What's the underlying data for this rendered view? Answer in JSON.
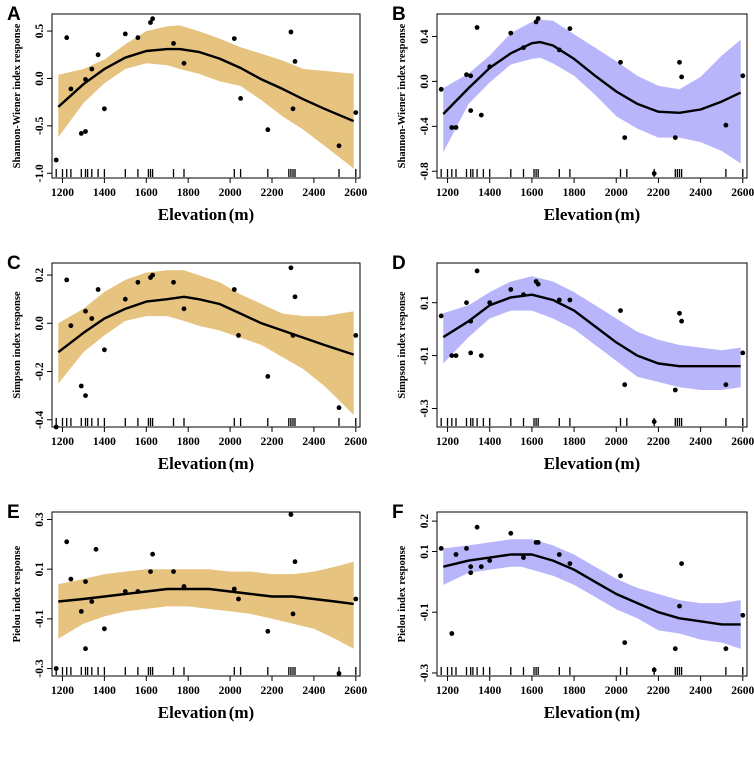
{
  "colors": {
    "gold": "#e6c37f",
    "purple": "#b9b5fb",
    "line": "#000000",
    "point": "#000000"
  },
  "chart_data": [
    {
      "panel": "A",
      "type": "scatter",
      "band_color": "gold",
      "xlabel": "Elevation (m)",
      "ylabel": "Shannon-Wiener index response",
      "xlim": [
        1150,
        2620
      ],
      "ylim": [
        -1.05,
        0.68
      ],
      "xticks": [
        1200,
        1400,
        1600,
        1800,
        2000,
        2200,
        2400,
        2600
      ],
      "yticks": [
        -1.0,
        -0.5,
        0.0,
        0.5
      ],
      "ytick_labels": [
        "-1.0",
        "-0.5",
        "0.0",
        "0.5"
      ],
      "curve": {
        "x": [
          1180,
          1300,
          1400,
          1500,
          1600,
          1700,
          1760,
          1850,
          1950,
          2050,
          2150,
          2250,
          2350,
          2450,
          2590
        ],
        "y": [
          -0.3,
          -0.06,
          0.1,
          0.22,
          0.29,
          0.31,
          0.31,
          0.28,
          0.21,
          0.11,
          -0.01,
          -0.11,
          -0.22,
          -0.32,
          -0.45
        ]
      },
      "band_upper": [
        0.04,
        0.1,
        0.2,
        0.36,
        0.5,
        0.55,
        0.56,
        0.5,
        0.42,
        0.33,
        0.26,
        0.19,
        0.1,
        0.08,
        0.05
      ],
      "band_lower": [
        -0.62,
        -0.26,
        -0.05,
        0.1,
        0.16,
        0.14,
        0.1,
        0.05,
        -0.03,
        -0.08,
        -0.23,
        -0.4,
        -0.54,
        -0.71,
        -0.95
      ],
      "points": [
        [
          1170,
          -0.86
        ],
        [
          1220,
          0.43
        ],
        [
          1240,
          -0.11
        ],
        [
          1290,
          -0.58
        ],
        [
          1310,
          -0.56
        ],
        [
          1310,
          -0.01
        ],
        [
          1340,
          0.1
        ],
        [
          1370,
          0.25
        ],
        [
          1400,
          -0.32
        ],
        [
          1500,
          0.47
        ],
        [
          1560,
          0.43
        ],
        [
          1620,
          0.59
        ],
        [
          1630,
          0.63
        ],
        [
          1730,
          0.37
        ],
        [
          1780,
          0.16
        ],
        [
          2020,
          0.42
        ],
        [
          2050,
          -0.21
        ],
        [
          2180,
          -0.54
        ],
        [
          2290,
          0.49
        ],
        [
          2300,
          -0.32
        ],
        [
          2310,
          0.18
        ],
        [
          2520,
          -0.71
        ],
        [
          2600,
          -0.36
        ]
      ],
      "rug": [
        1170,
        1200,
        1220,
        1240,
        1290,
        1310,
        1320,
        1340,
        1370,
        1400,
        1500,
        1560,
        1610,
        1620,
        1630,
        1730,
        1780,
        2020,
        2050,
        2180,
        2280,
        2290,
        2300,
        2310,
        2520,
        2600
      ]
    },
    {
      "panel": "B",
      "type": "scatter",
      "band_color": "purple",
      "xlabel": "Elevation (m)",
      "ylabel": "Shannon-Wiener index response",
      "xlim": [
        1150,
        2620
      ],
      "ylim": [
        -0.86,
        0.6
      ],
      "xticks": [
        1200,
        1400,
        1600,
        1800,
        2000,
        2200,
        2400,
        2600
      ],
      "yticks": [
        -0.8,
        -0.4,
        0.0,
        0.4
      ],
      "ytick_labels": [
        "-0.8",
        "-0.4",
        "0.0",
        "0.4"
      ],
      "curve": {
        "x": [
          1180,
          1300,
          1400,
          1500,
          1600,
          1640,
          1700,
          1800,
          1900,
          2000,
          2100,
          2200,
          2300,
          2400,
          2500,
          2590
        ],
        "y": [
          -0.29,
          -0.06,
          0.12,
          0.25,
          0.34,
          0.35,
          0.32,
          0.2,
          0.05,
          -0.09,
          -0.2,
          -0.27,
          -0.28,
          -0.25,
          -0.18,
          -0.1
        ]
      },
      "band_upper": [
        -0.06,
        0.07,
        0.23,
        0.43,
        0.53,
        0.55,
        0.54,
        0.42,
        0.3,
        0.18,
        0.05,
        -0.04,
        -0.07,
        0.04,
        0.23,
        0.37
      ],
      "band_lower": [
        -0.63,
        -0.2,
        -0.01,
        0.15,
        0.2,
        0.21,
        0.16,
        0.05,
        -0.12,
        -0.31,
        -0.42,
        -0.5,
        -0.5,
        -0.54,
        -0.62,
        -0.73
      ],
      "points": [
        [
          1170,
          -0.07
        ],
        [
          1220,
          -0.41
        ],
        [
          1240,
          -0.41
        ],
        [
          1290,
          0.06
        ],
        [
          1310,
          -0.26
        ],
        [
          1310,
          0.05
        ],
        [
          1340,
          0.48
        ],
        [
          1360,
          -0.3
        ],
        [
          1400,
          0.13
        ],
        [
          1500,
          0.43
        ],
        [
          1560,
          0.3
        ],
        [
          1620,
          0.53
        ],
        [
          1630,
          0.56
        ],
        [
          1730,
          0.28
        ],
        [
          1780,
          0.47
        ],
        [
          2020,
          0.17
        ],
        [
          2040,
          -0.5
        ],
        [
          2180,
          -0.82
        ],
        [
          2280,
          -0.5
        ],
        [
          2300,
          0.17
        ],
        [
          2310,
          0.04
        ],
        [
          2520,
          -0.39
        ],
        [
          2600,
          0.05
        ]
      ],
      "rug": [
        1170,
        1200,
        1220,
        1240,
        1290,
        1310,
        1320,
        1340,
        1370,
        1400,
        1500,
        1560,
        1610,
        1620,
        1630,
        1730,
        1780,
        2020,
        2050,
        2180,
        2280,
        2290,
        2300,
        2310,
        2520,
        2600
      ]
    },
    {
      "panel": "C",
      "type": "scatter",
      "band_color": "gold",
      "xlabel": "Elevation (m)",
      "ylabel": "Simpson index response",
      "xlim": [
        1150,
        2620
      ],
      "ylim": [
        -0.43,
        0.25
      ],
      "xticks": [
        1200,
        1400,
        1600,
        1800,
        2000,
        2200,
        2400,
        2600
      ],
      "yticks": [
        -0.4,
        -0.2,
        0.0,
        0.2
      ],
      "ytick_labels": [
        "-0.4",
        "-0.2",
        "0.0",
        "0.2"
      ],
      "curve": {
        "x": [
          1180,
          1300,
          1400,
          1500,
          1600,
          1700,
          1780,
          1850,
          1950,
          2050,
          2150,
          2250,
          2350,
          2450,
          2590
        ],
        "y": [
          -0.12,
          -0.04,
          0.02,
          0.06,
          0.09,
          0.1,
          0.11,
          0.1,
          0.08,
          0.04,
          0.0,
          -0.03,
          -0.06,
          -0.09,
          -0.13
        ]
      },
      "band_upper": [
        0.0,
        0.06,
        0.13,
        0.18,
        0.21,
        0.22,
        0.22,
        0.2,
        0.17,
        0.12,
        0.08,
        0.04,
        0.03,
        0.03,
        0.05
      ],
      "band_lower": [
        -0.25,
        -0.12,
        -0.05,
        0.01,
        0.03,
        0.03,
        0.01,
        -0.01,
        -0.03,
        -0.06,
        -0.09,
        -0.14,
        -0.19,
        -0.26,
        -0.38
      ],
      "points": [
        [
          1170,
          -0.43
        ],
        [
          1220,
          0.18
        ],
        [
          1240,
          -0.01
        ],
        [
          1290,
          -0.26
        ],
        [
          1310,
          -0.3
        ],
        [
          1310,
          0.05
        ],
        [
          1340,
          0.02
        ],
        [
          1370,
          0.14
        ],
        [
          1400,
          -0.11
        ],
        [
          1500,
          0.1
        ],
        [
          1560,
          0.17
        ],
        [
          1620,
          0.19
        ],
        [
          1630,
          0.2
        ],
        [
          1730,
          0.17
        ],
        [
          1780,
          0.06
        ],
        [
          2020,
          0.14
        ],
        [
          2040,
          -0.05
        ],
        [
          2180,
          -0.22
        ],
        [
          2290,
          0.23
        ],
        [
          2300,
          -0.05
        ],
        [
          2310,
          0.11
        ],
        [
          2520,
          -0.35
        ],
        [
          2600,
          -0.05
        ]
      ],
      "rug": [
        1170,
        1200,
        1220,
        1240,
        1290,
        1310,
        1320,
        1340,
        1370,
        1400,
        1500,
        1560,
        1610,
        1620,
        1630,
        1730,
        1780,
        2020,
        2050,
        2180,
        2280,
        2290,
        2300,
        2310,
        2520,
        2600
      ]
    },
    {
      "panel": "D",
      "type": "scatter",
      "band_color": "purple",
      "xlabel": "Elevation (m)",
      "ylabel": "Simpson index response",
      "xlim": [
        1150,
        2620
      ],
      "ylim": [
        -0.37,
        0.25
      ],
      "xticks": [
        1200,
        1400,
        1600,
        1800,
        2000,
        2200,
        2400,
        2600
      ],
      "yticks": [
        -0.3,
        -0.1,
        0.1
      ],
      "ytick_labels": [
        "-0.3",
        "-0.1",
        "0.1"
      ],
      "curve": {
        "x": [
          1180,
          1300,
          1400,
          1500,
          1600,
          1700,
          1800,
          1900,
          2000,
          2100,
          2200,
          2300,
          2400,
          2500,
          2590
        ],
        "y": [
          -0.03,
          0.03,
          0.09,
          0.12,
          0.13,
          0.11,
          0.07,
          0.01,
          -0.05,
          -0.1,
          -0.13,
          -0.14,
          -0.14,
          -0.14,
          -0.14
        ]
      },
      "band_upper": [
        0.06,
        0.09,
        0.14,
        0.18,
        0.2,
        0.18,
        0.14,
        0.09,
        0.04,
        -0.01,
        -0.04,
        -0.06,
        -0.07,
        -0.08,
        -0.07
      ],
      "band_lower": [
        -0.13,
        -0.03,
        0.04,
        0.07,
        0.07,
        0.04,
        0.0,
        -0.06,
        -0.12,
        -0.18,
        -0.2,
        -0.22,
        -0.23,
        -0.23,
        -0.22
      ],
      "points": [
        [
          1170,
          0.05
        ],
        [
          1220,
          -0.1
        ],
        [
          1240,
          -0.1
        ],
        [
          1290,
          0.1
        ],
        [
          1310,
          -0.09
        ],
        [
          1310,
          0.03
        ],
        [
          1340,
          0.22
        ],
        [
          1360,
          -0.1
        ],
        [
          1400,
          0.1
        ],
        [
          1500,
          0.15
        ],
        [
          1560,
          0.13
        ],
        [
          1620,
          0.18
        ],
        [
          1630,
          0.17
        ],
        [
          1730,
          0.11
        ],
        [
          1780,
          0.11
        ],
        [
          2020,
          0.07
        ],
        [
          2040,
          -0.21
        ],
        [
          2180,
          -0.35
        ],
        [
          2280,
          -0.23
        ],
        [
          2300,
          0.06
        ],
        [
          2310,
          0.03
        ],
        [
          2520,
          -0.21
        ],
        [
          2600,
          -0.09
        ]
      ],
      "rug": [
        1170,
        1200,
        1220,
        1240,
        1290,
        1310,
        1320,
        1340,
        1370,
        1400,
        1500,
        1560,
        1610,
        1620,
        1630,
        1730,
        1780,
        2020,
        2050,
        2180,
        2280,
        2290,
        2300,
        2310,
        2520,
        2600
      ]
    },
    {
      "panel": "E",
      "type": "scatter",
      "band_color": "gold",
      "xlabel": "Elevation (m)",
      "ylabel": "Pielou index response",
      "xlim": [
        1150,
        2620
      ],
      "ylim": [
        -0.33,
        0.33
      ],
      "xticks": [
        1200,
        1400,
        1600,
        1800,
        2000,
        2200,
        2400,
        2600
      ],
      "yticks": [
        -0.3,
        -0.1,
        0.1,
        0.3
      ],
      "ytick_labels": [
        "-0.3",
        "-0.1",
        "0.1",
        "0.3"
      ],
      "curve": {
        "x": [
          1180,
          1300,
          1400,
          1500,
          1600,
          1700,
          1800,
          1900,
          2000,
          2100,
          2200,
          2300,
          2400,
          2500,
          2590
        ],
        "y": [
          -0.03,
          -0.02,
          -0.01,
          0.0,
          0.01,
          0.02,
          0.02,
          0.02,
          0.01,
          0.0,
          -0.01,
          -0.01,
          -0.02,
          -0.03,
          -0.04
        ]
      },
      "band_upper": [
        0.04,
        0.06,
        0.08,
        0.09,
        0.1,
        0.1,
        0.1,
        0.1,
        0.09,
        0.09,
        0.08,
        0.08,
        0.09,
        0.11,
        0.13
      ],
      "band_lower": [
        -0.18,
        -0.12,
        -0.09,
        -0.07,
        -0.06,
        -0.05,
        -0.05,
        -0.06,
        -0.07,
        -0.08,
        -0.1,
        -0.12,
        -0.14,
        -0.18,
        -0.22
      ],
      "points": [
        [
          1170,
          -0.3
        ],
        [
          1220,
          0.21
        ],
        [
          1240,
          0.06
        ],
        [
          1290,
          -0.07
        ],
        [
          1310,
          -0.22
        ],
        [
          1310,
          0.05
        ],
        [
          1340,
          -0.03
        ],
        [
          1360,
          0.18
        ],
        [
          1400,
          -0.14
        ],
        [
          1500,
          0.01
        ],
        [
          1560,
          0.01
        ],
        [
          1620,
          0.09
        ],
        [
          1630,
          0.16
        ],
        [
          1730,
          0.09
        ],
        [
          1780,
          0.03
        ],
        [
          2020,
          0.02
        ],
        [
          2040,
          -0.02
        ],
        [
          2180,
          -0.15
        ],
        [
          2290,
          0.32
        ],
        [
          2300,
          -0.08
        ],
        [
          2310,
          0.13
        ],
        [
          2520,
          -0.32
        ],
        [
          2600,
          -0.02
        ]
      ],
      "rug": [
        1170,
        1200,
        1220,
        1240,
        1290,
        1310,
        1320,
        1340,
        1370,
        1400,
        1500,
        1560,
        1610,
        1620,
        1630,
        1730,
        1780,
        2020,
        2050,
        2180,
        2280,
        2290,
        2300,
        2310,
        2520,
        2600
      ]
    },
    {
      "panel": "F",
      "type": "scatter",
      "band_color": "purple",
      "xlabel": "Elevation (m)",
      "ylabel": "Pielou index response",
      "xlim": [
        1150,
        2620
      ],
      "ylim": [
        -0.31,
        0.23
      ],
      "xticks": [
        1200,
        1400,
        1600,
        1800,
        2000,
        2200,
        2400,
        2600
      ],
      "yticks": [
        -0.3,
        -0.1,
        0.1,
        0.2
      ],
      "ytick_labels": [
        "-0.3",
        "-0.1",
        "0.1",
        "0.2"
      ],
      "curve": {
        "x": [
          1180,
          1300,
          1400,
          1500,
          1550,
          1600,
          1700,
          1800,
          1900,
          2000,
          2100,
          2200,
          2300,
          2400,
          2500,
          2590
        ],
        "y": [
          0.05,
          0.07,
          0.08,
          0.09,
          0.09,
          0.09,
          0.07,
          0.04,
          0.0,
          -0.04,
          -0.07,
          -0.1,
          -0.12,
          -0.13,
          -0.14,
          -0.14
        ]
      },
      "band_upper": [
        0.11,
        0.12,
        0.13,
        0.14,
        0.14,
        0.14,
        0.12,
        0.09,
        0.05,
        0.01,
        -0.02,
        -0.04,
        -0.06,
        -0.07,
        -0.07,
        -0.06
      ],
      "band_lower": [
        -0.01,
        0.03,
        0.04,
        0.05,
        0.05,
        0.04,
        0.02,
        -0.01,
        -0.05,
        -0.09,
        -0.12,
        -0.16,
        -0.17,
        -0.19,
        -0.2,
        -0.22
      ],
      "points": [
        [
          1170,
          0.11
        ],
        [
          1220,
          -0.17
        ],
        [
          1240,
          0.09
        ],
        [
          1290,
          0.11
        ],
        [
          1310,
          0.03
        ],
        [
          1310,
          0.05
        ],
        [
          1340,
          0.18
        ],
        [
          1360,
          0.05
        ],
        [
          1400,
          0.07
        ],
        [
          1500,
          0.16
        ],
        [
          1560,
          0.08
        ],
        [
          1620,
          0.13
        ],
        [
          1630,
          0.13
        ],
        [
          1730,
          0.09
        ],
        [
          1780,
          0.06
        ],
        [
          2020,
          0.02
        ],
        [
          2040,
          -0.2
        ],
        [
          2180,
          -0.29
        ],
        [
          2280,
          -0.22
        ],
        [
          2300,
          -0.08
        ],
        [
          2310,
          0.06
        ],
        [
          2520,
          -0.22
        ],
        [
          2600,
          -0.11
        ]
      ],
      "rug": [
        1170,
        1200,
        1220,
        1240,
        1290,
        1310,
        1320,
        1340,
        1370,
        1400,
        1500,
        1560,
        1610,
        1620,
        1630,
        1730,
        1780,
        2020,
        2050,
        2180,
        2280,
        2290,
        2300,
        2310,
        2520,
        2600
      ]
    }
  ]
}
